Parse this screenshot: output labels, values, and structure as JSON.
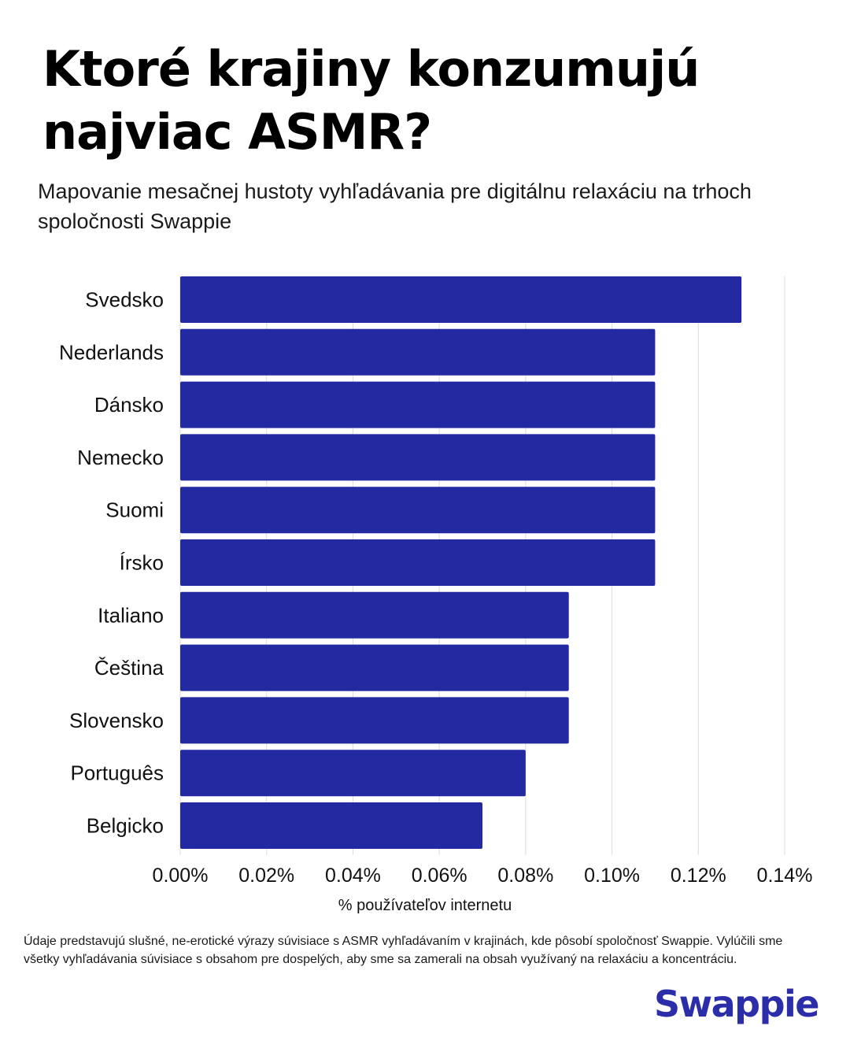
{
  "title": "Ktoré krajiny konzumujú najviac ASMR?",
  "subtitle": "Mapovanie mesačnej hustoty vyhľadávania pre digitálnu relaxáciu na trhoch spoločnosti Swappie",
  "footnote": "Údaje predstavujú slušné, ne-erotické výrazy súvisiace s ASMR vyhľadávaním v krajinách, kde pôsobí spoločnosť Swappie. Vylúčili sme všetky vyhľadávania súvisiace s obsahom pre dospelých, aby sme sa zamerali na obsah využívaný na relaxáciu a koncentráciu.",
  "logo": "Swappie",
  "colors": {
    "bar": "#2329a0",
    "grid": "#dcdcdc",
    "brand": "#2b2ea8"
  },
  "chart_data": {
    "type": "bar",
    "orientation": "horizontal",
    "categories": [
      "Svedsko",
      "Nederlands",
      "Dánsko",
      "Nemecko",
      "Suomi",
      "Írsko",
      "Italiano",
      "Čeština",
      "Slovensko",
      "Português",
      "Belgicko"
    ],
    "values": [
      0.13,
      0.11,
      0.11,
      0.11,
      0.11,
      0.11,
      0.09,
      0.09,
      0.09,
      0.08,
      0.07
    ],
    "xlabel": "% používateľov internetu",
    "xlim": [
      0,
      0.14
    ],
    "xticks": [
      "0.00%",
      "0.02%",
      "0.04%",
      "0.06%",
      "0.08%",
      "0.10%",
      "0.12%",
      "0.14%"
    ],
    "grid": true
  }
}
